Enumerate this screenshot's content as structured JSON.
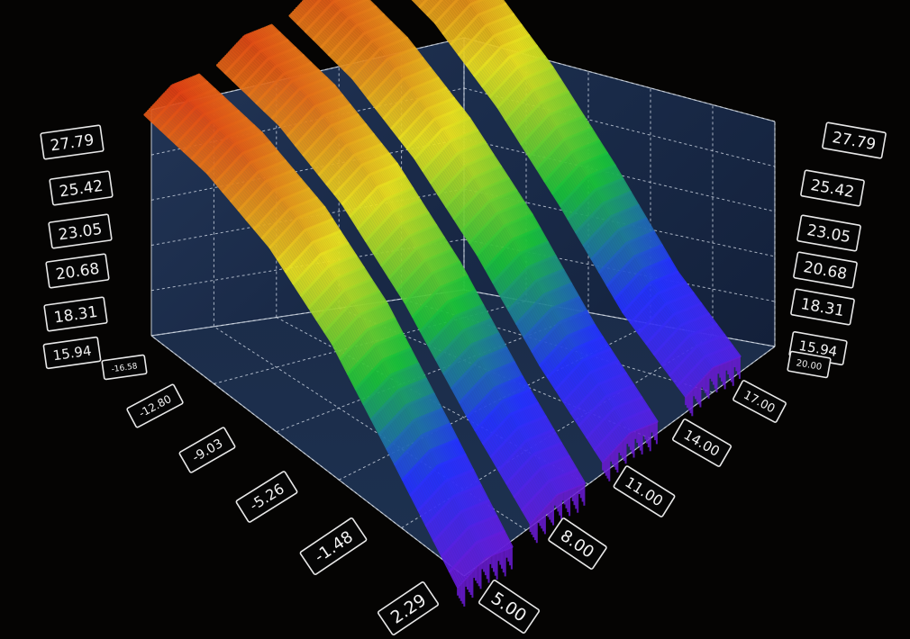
{
  "chart_data": {
    "type": "surface-3d",
    "background": "#050403",
    "panel_color": "#1b2b45",
    "z_axis": {
      "ticks": [
        "15.94",
        "18.31",
        "20.68",
        "23.05",
        "25.42",
        "27.79"
      ],
      "range": [
        15.94,
        27.79
      ]
    },
    "x_axis": {
      "ticks": [
        "-16.58",
        "-12.80",
        "-9.03",
        "-5.26",
        "-1.48",
        "2.29"
      ],
      "range": [
        -16.58,
        2.29
      ]
    },
    "y_axis": {
      "ticks": [
        "5.00",
        "8.00",
        "11.00",
        "14.00",
        "17.00",
        "20.00"
      ],
      "range": [
        5.0,
        20.0
      ]
    },
    "colormap": [
      "#6a1bd6",
      "#2432ff",
      "#19c23a",
      "#e8e020",
      "#e03414"
    ],
    "surface": {
      "description_free": true,
      "ridges": [
        {
          "y": 6.0,
          "x": [
            -16.58,
            -12.8,
            -9.03,
            -5.26,
            -1.48,
            2.29
          ],
          "z": [
            27.6,
            27.1,
            25.8,
            23.4,
            19.8,
            16.1
          ]
        },
        {
          "y": 9.5,
          "x": [
            -16.58,
            -12.8,
            -9.03,
            -5.26,
            -1.48,
            2.29
          ],
          "z": [
            27.4,
            26.8,
            25.3,
            22.8,
            19.5,
            16.6
          ]
        },
        {
          "y": 13.0,
          "x": [
            -16.58,
            -12.8,
            -9.03,
            -5.26,
            -1.48,
            2.29
          ],
          "z": [
            27.2,
            26.5,
            24.9,
            22.5,
            19.4,
            17.0
          ]
        },
        {
          "y": 17.0,
          "x": [
            -16.58,
            -12.8,
            -9.03,
            -5.26,
            -1.48,
            2.29
          ],
          "z": [
            27.0,
            26.2,
            24.4,
            21.9,
            19.0,
            17.2
          ]
        }
      ]
    }
  }
}
